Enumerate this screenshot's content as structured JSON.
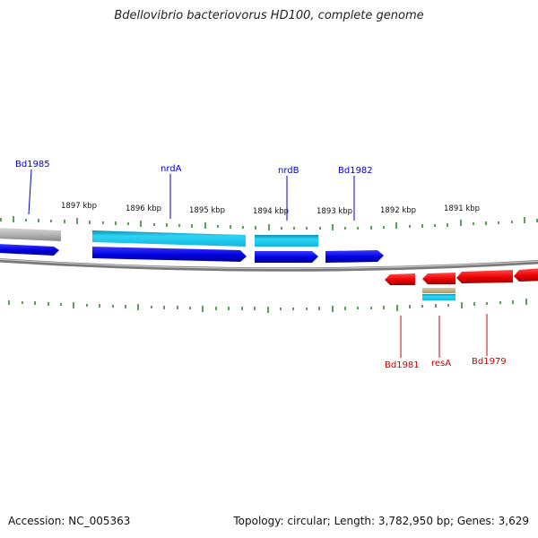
{
  "title": "Bdellovibrio bacteriovorus HD100, complete genome",
  "footer": {
    "accession": "Accession: NC_005363",
    "summary": "Topology: circular; Length: 3,782,950 bp; Genes: 3,629"
  },
  "scale_labels": [
    "1897 kbp",
    "1896 kbp",
    "1895 kbp",
    "1894 kbp",
    "1893 kbp",
    "1892 kbp",
    "1891 kbp"
  ],
  "gene_labels_top": [
    "Bd1985",
    "nrdA",
    "nrdB",
    "Bd1982"
  ],
  "gene_labels_bottom": [
    "Bd1981",
    "resA",
    "Bd1979"
  ],
  "colors": {
    "forward_gene": "#0000e0",
    "forward_cds": "#19c6ea",
    "reverse_gene": "#ee0000",
    "label_forward": "#0000cc",
    "label_reverse": "#cc0000",
    "tick": "#2e8b2e",
    "backbone": "#888888"
  }
}
